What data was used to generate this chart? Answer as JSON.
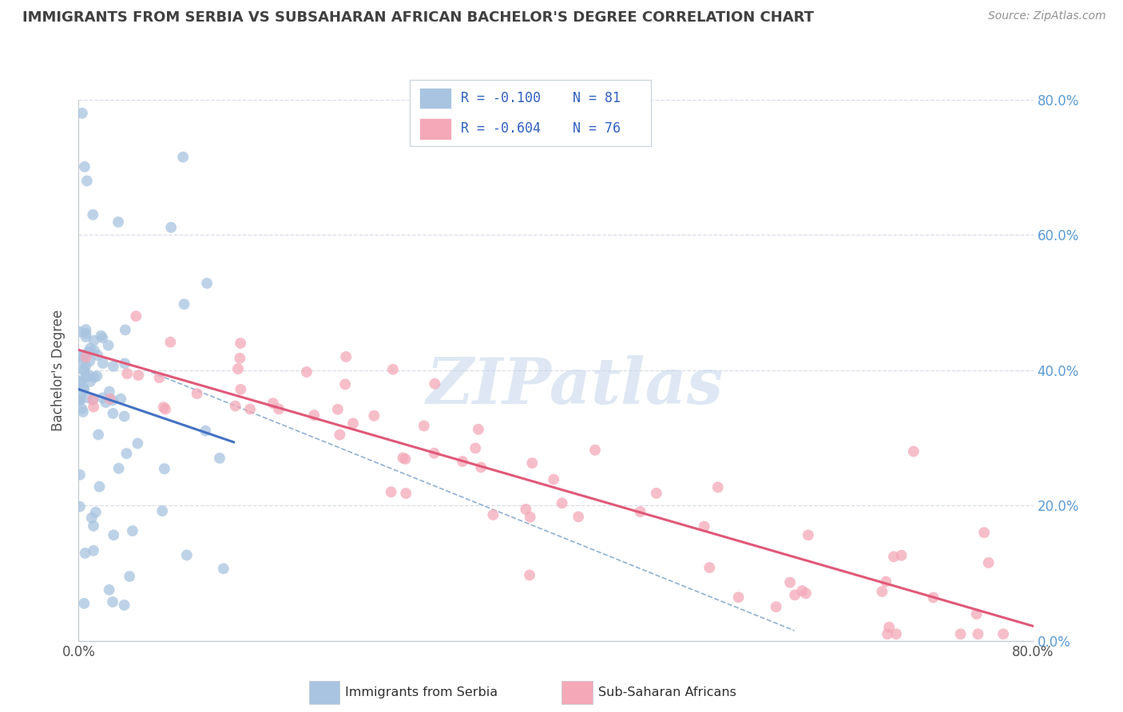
{
  "title": "IMMIGRANTS FROM SERBIA VS SUBSAHARAN AFRICAN BACHELOR'S DEGREE CORRELATION CHART",
  "source_text": "Source: ZipAtlas.com",
  "ylabel": "Bachelor's Degree",
  "watermark": "ZIPatlas",
  "legend_r1": "R = -0.100",
  "legend_n1": "N = 81",
  "legend_r2": "R = -0.604",
  "legend_n2": "N = 76",
  "legend_label1": "Immigrants from Serbia",
  "legend_label2": "Sub-Saharan Africans",
  "blue_color": "#a8c4e0",
  "pink_color": "#f4a8b8",
  "blue_line_color": "#4472c4",
  "pink_line_color": "#e05878",
  "dashed_line_color": "#90b0d0",
  "right_axis_color": "#5b9bd5",
  "xlim": [
    0.0,
    0.8
  ],
  "ylim": [
    0.0,
    0.8
  ],
  "bg_color": "#ffffff",
  "grid_color": "#d8dce8",
  "title_color": "#404040",
  "source_color": "#909090",
  "legend_text_color": "#1a1a2e",
  "legend_value_color": "#3060c0"
}
